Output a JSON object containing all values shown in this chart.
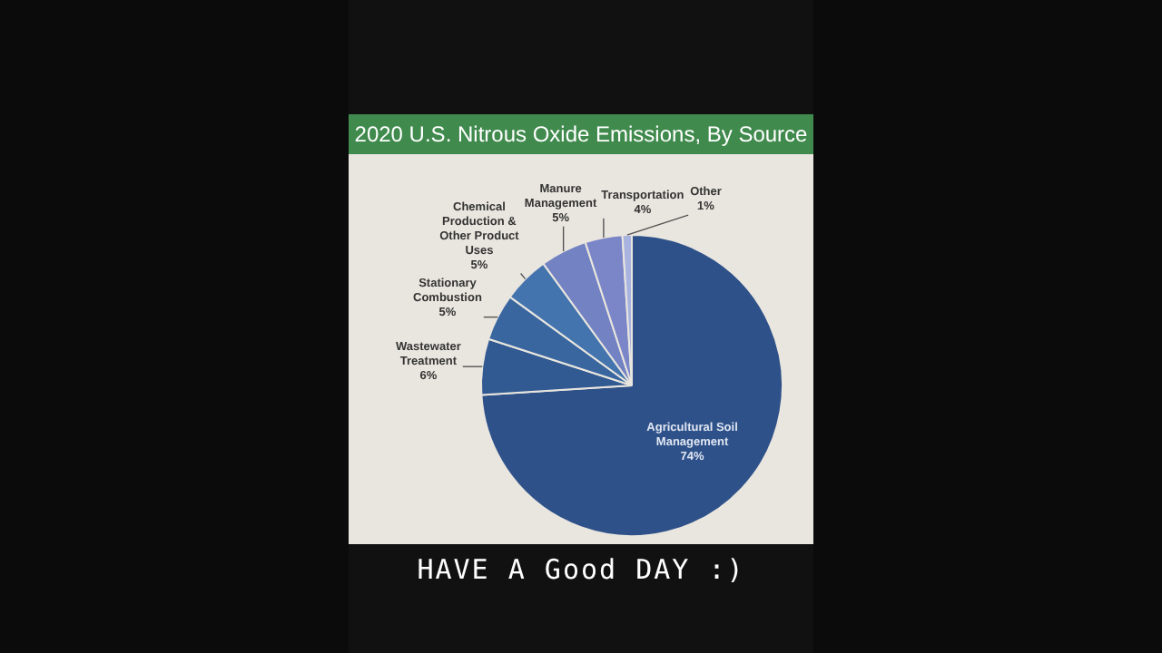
{
  "chart_data": {
    "type": "pie",
    "title": "2020 U.S. Nitrous Oxide Emissions, By Source",
    "categories": [
      "Agricultural Soil Management",
      "Wastewater Treatment",
      "Stationary Combustion",
      "Chemical Production & Other Product Uses",
      "Manure Management",
      "Transportation",
      "Other"
    ],
    "values": [
      74,
      6,
      5,
      5,
      5,
      4,
      1
    ],
    "value_labels": [
      "74%",
      "6%",
      "5%",
      "5%",
      "5%",
      "4%",
      "1%"
    ],
    "colors": [
      "#2e5189",
      "#325a92",
      "#3a66a0",
      "#4474ae",
      "#7282c2",
      "#7b86c8",
      "#a9b3e0"
    ],
    "legend": false,
    "annotations": [
      "HAVE A Good DAY :)"
    ]
  }
}
